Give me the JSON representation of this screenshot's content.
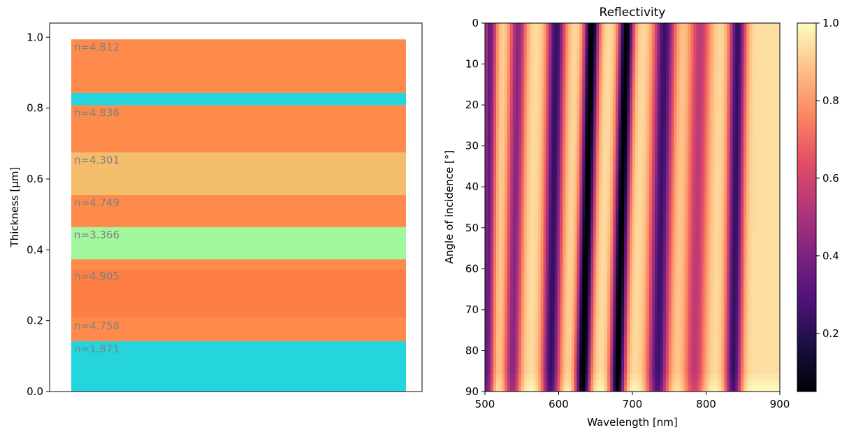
{
  "chart_data": [
    {
      "type": "bar",
      "title": "",
      "xlabel": "",
      "ylabel": "Thickness [µm]",
      "ylim": [
        0.0,
        1.04
      ],
      "yticks": [
        0.0,
        0.2,
        0.4,
        0.6,
        0.8,
        1.0
      ],
      "ytick_labels": [
        "0.0",
        "0.2",
        "0.4",
        "0.6",
        "0.8",
        "1.0"
      ],
      "grid": false,
      "layers": [
        {
          "bottom": 0.0,
          "top": 0.142,
          "n": 1.871,
          "label": "n=1.871",
          "color": "#25d5de"
        },
        {
          "bottom": 0.142,
          "top": 0.207,
          "n": 4.758,
          "label": "n=4.758",
          "color": "#fe8a4c"
        },
        {
          "bottom": 0.207,
          "top": 0.347,
          "n": 4.905,
          "label": "n=4.905",
          "color": "#fd7f45"
        },
        {
          "bottom": 0.347,
          "top": 0.373,
          "n": 4.905,
          "label": "",
          "color": "#fe8a4c"
        },
        {
          "bottom": 0.373,
          "top": 0.464,
          "n": 3.366,
          "label": "n=3.366",
          "color": "#a3f79d"
        },
        {
          "bottom": 0.464,
          "top": 0.555,
          "n": 4.749,
          "label": "n=4.749",
          "color": "#fe8a4c"
        },
        {
          "bottom": 0.555,
          "top": 0.675,
          "n": 4.301,
          "label": "n=4.301",
          "color": "#f3bd6c"
        },
        {
          "bottom": 0.675,
          "top": 0.808,
          "n": 4.836,
          "label": "n=4.836",
          "color": "#fe8a4c"
        },
        {
          "bottom": 0.808,
          "top": 0.843,
          "n": 1.871,
          "label": "",
          "color": "#25d5de"
        },
        {
          "bottom": 0.843,
          "top": 0.994,
          "n": 4.812,
          "label": "n=4.812",
          "color": "#fe8a4c"
        }
      ],
      "label_color": "#808080"
    },
    {
      "type": "heatmap",
      "title": "Reflectivity",
      "xlabel": "Wavelength [nm]",
      "ylabel": "Angle of incidence [°]",
      "xlim": [
        500,
        900
      ],
      "ylim": [
        0,
        90
      ],
      "y_inverted": true,
      "xticks": [
        500,
        600,
        700,
        800,
        900
      ],
      "yticks": [
        0,
        10,
        20,
        30,
        40,
        50,
        60,
        70,
        80,
        90
      ],
      "colormap": "magma",
      "colorbar": {
        "range": [
          0.05,
          1.0
        ],
        "ticks": [
          0.2,
          0.4,
          0.6,
          0.8,
          1.0
        ],
        "tick_labels": [
          "0.2",
          "0.4",
          "0.6",
          "0.8",
          "1.0"
        ]
      },
      "minima": [
        {
          "wavelength_at_0deg": 507,
          "slope_per_deg": -0.05,
          "depth": 0.6,
          "width": 9
        },
        {
          "wavelength_at_0deg": 545,
          "slope_per_deg": -0.09,
          "depth": 0.52,
          "width": 11
        },
        {
          "wavelength_at_0deg": 597,
          "slope_per_deg": -0.09,
          "depth": 0.72,
          "width": 12
        },
        {
          "wavelength_at_0deg": 645,
          "slope_per_deg": -0.14,
          "depth": 0.95,
          "width": 10
        },
        {
          "wavelength_at_0deg": 692,
          "slope_per_deg": -0.14,
          "depth": 0.93,
          "width": 10
        },
        {
          "wavelength_at_0deg": 744,
          "slope_per_deg": -0.11,
          "depth": 0.7,
          "width": 14
        },
        {
          "wavelength_at_0deg": 792,
          "slope_per_deg": -0.09,
          "depth": 0.4,
          "width": 14
        },
        {
          "wavelength_at_0deg": 843,
          "slope_per_deg": -0.07,
          "depth": 0.72,
          "width": 11
        }
      ]
    }
  ]
}
